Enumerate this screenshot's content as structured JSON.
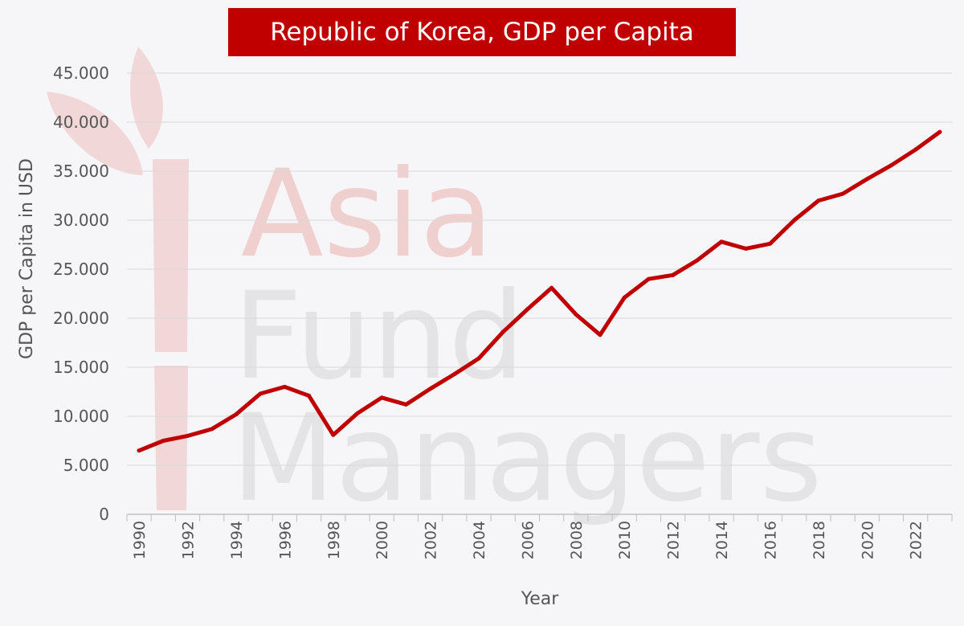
{
  "watermark": {
    "line1": "Asia",
    "line2": "Fund",
    "line3": "Managers",
    "color_primary": "#f0cfcf",
    "color_secondary": "#e4e4e6"
  },
  "colors": {
    "background": "#f6f5f8",
    "title_bg": "#c00000",
    "title_text": "#ffffff",
    "line": "#c00000",
    "grid": "#d9d9d9",
    "axis_text": "#555555"
  },
  "chart_data": {
    "type": "line",
    "title": "Republic of Korea, GDP per Capita",
    "xlabel": "Year",
    "ylabel": "GDP per Capita in USD",
    "xlim": [
      1990,
      2023
    ],
    "ylim": [
      0,
      45000
    ],
    "y_ticks": [
      0,
      5000,
      10000,
      15000,
      20000,
      25000,
      30000,
      35000,
      40000,
      45000
    ],
    "y_tick_labels": [
      "0",
      "5.000",
      "10.000",
      "15.000",
      "20.000",
      "25.000",
      "30.000",
      "35.000",
      "40.000",
      "45.000"
    ],
    "x_tick_labels": [
      "1990",
      "1992",
      "1994",
      "1996",
      "1998",
      "2000",
      "2002",
      "2004",
      "2006",
      "2008",
      "2010",
      "2012",
      "2014",
      "2016",
      "2018",
      "2020",
      "2022"
    ],
    "grid": true,
    "legend": "none",
    "series": [
      {
        "x": [
          1990,
          1991,
          1992,
          1993,
          1994,
          1995,
          1996,
          1997,
          1998,
          1999,
          2000,
          2001,
          2002,
          2003,
          2004,
          2005,
          2006,
          2007,
          2008,
          2009,
          2010,
          2011,
          2012,
          2013,
          2014,
          2015,
          2016,
          2017,
          2018,
          2019,
          2020,
          2021,
          2022,
          2023
        ],
        "values": [
          6500,
          7500,
          8000,
          8700,
          10200,
          12300,
          13000,
          12100,
          8100,
          10300,
          11900,
          11200,
          12800,
          14300,
          15900,
          18600,
          20900,
          23100,
          20400,
          18300,
          22100,
          24000,
          24400,
          25900,
          27800,
          27100,
          27600,
          30000,
          32000,
          32700,
          34200,
          35600,
          37200,
          39000
        ]
      }
    ]
  }
}
